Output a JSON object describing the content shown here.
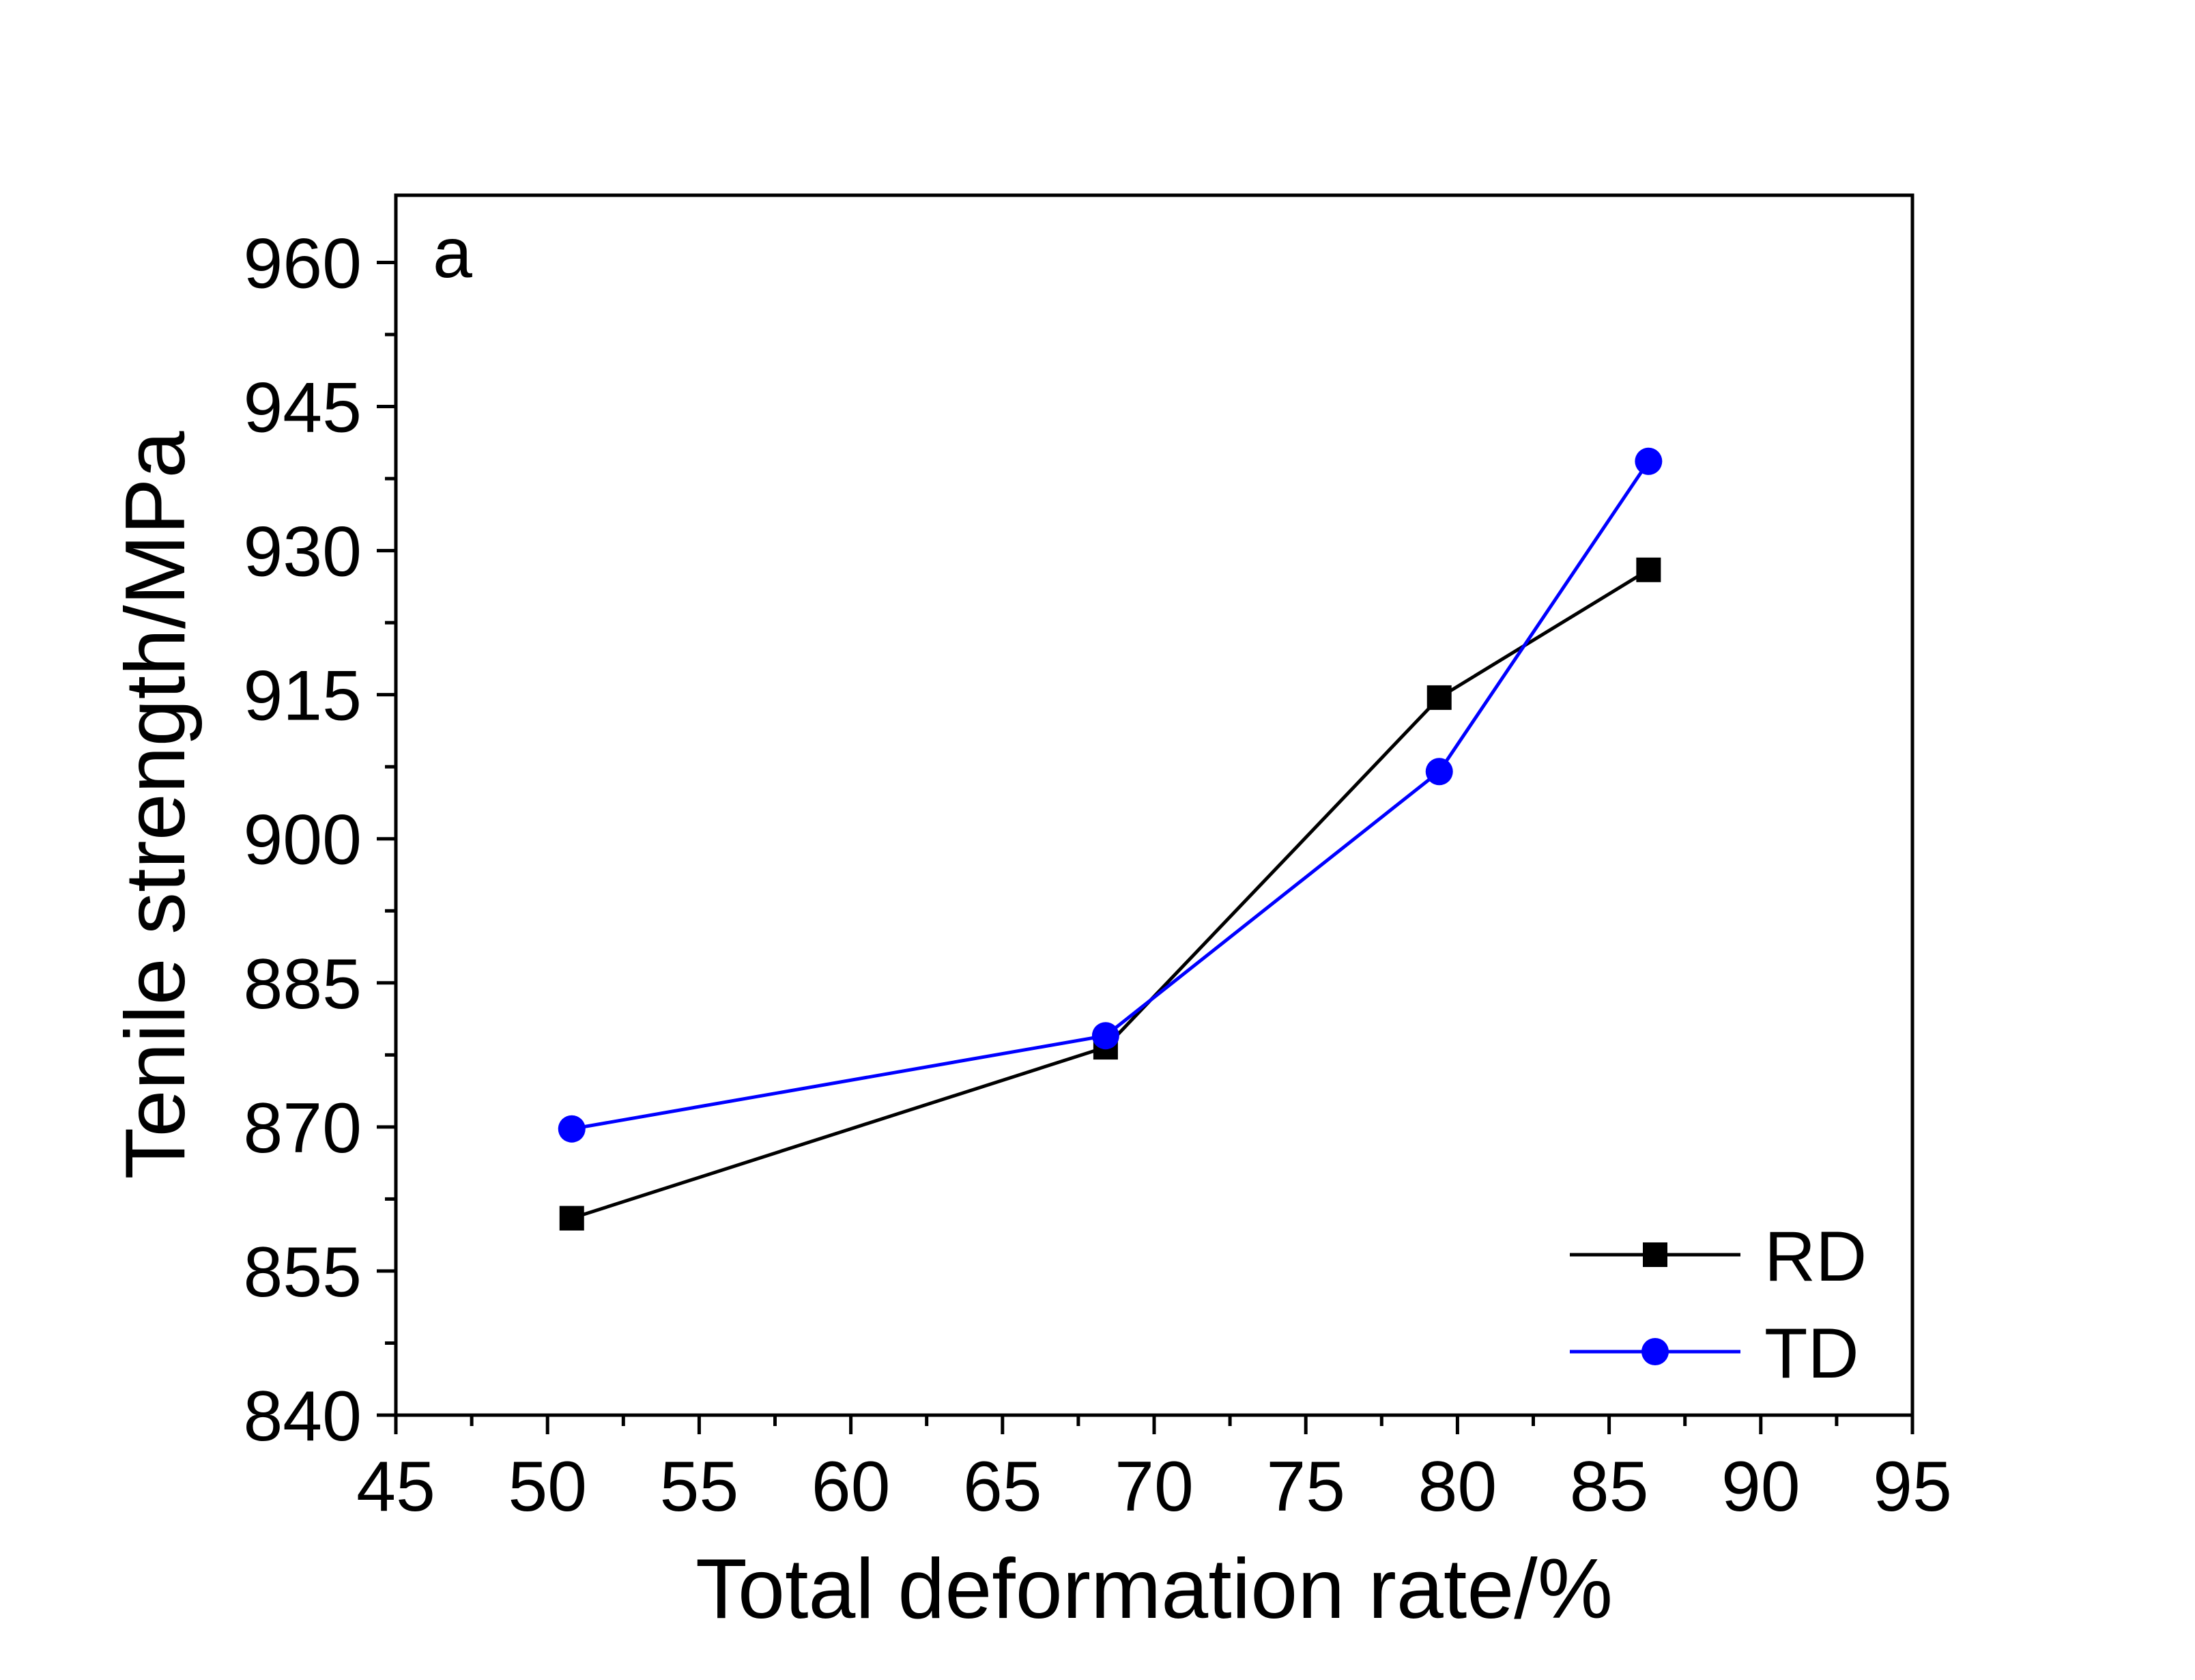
{
  "chart_data": {
    "type": "line",
    "annotation": "a",
    "xlabel": "Total deformation rate/%",
    "ylabel": "Tenile strength/MPa",
    "xlim": [
      45,
      95
    ],
    "ylim": [
      840,
      967
    ],
    "xticks": [
      45,
      50,
      55,
      60,
      65,
      70,
      75,
      80,
      85,
      90,
      95
    ],
    "yticks": [
      840,
      855,
      870,
      885,
      900,
      915,
      930,
      945,
      960
    ],
    "grid": false,
    "legend_position": "bottom-right",
    "series": [
      {
        "name": "RD",
        "color": "#000000",
        "marker": "square",
        "x": [
          50.8,
          68.4,
          79.4,
          86.3
        ],
        "y": [
          860.5,
          878.3,
          914.7,
          928.0
        ]
      },
      {
        "name": "TD",
        "color": "#0000ff",
        "marker": "circle",
        "x": [
          50.8,
          68.4,
          79.4,
          86.3
        ],
        "y": [
          869.8,
          879.5,
          907.0,
          939.3
        ]
      }
    ]
  }
}
